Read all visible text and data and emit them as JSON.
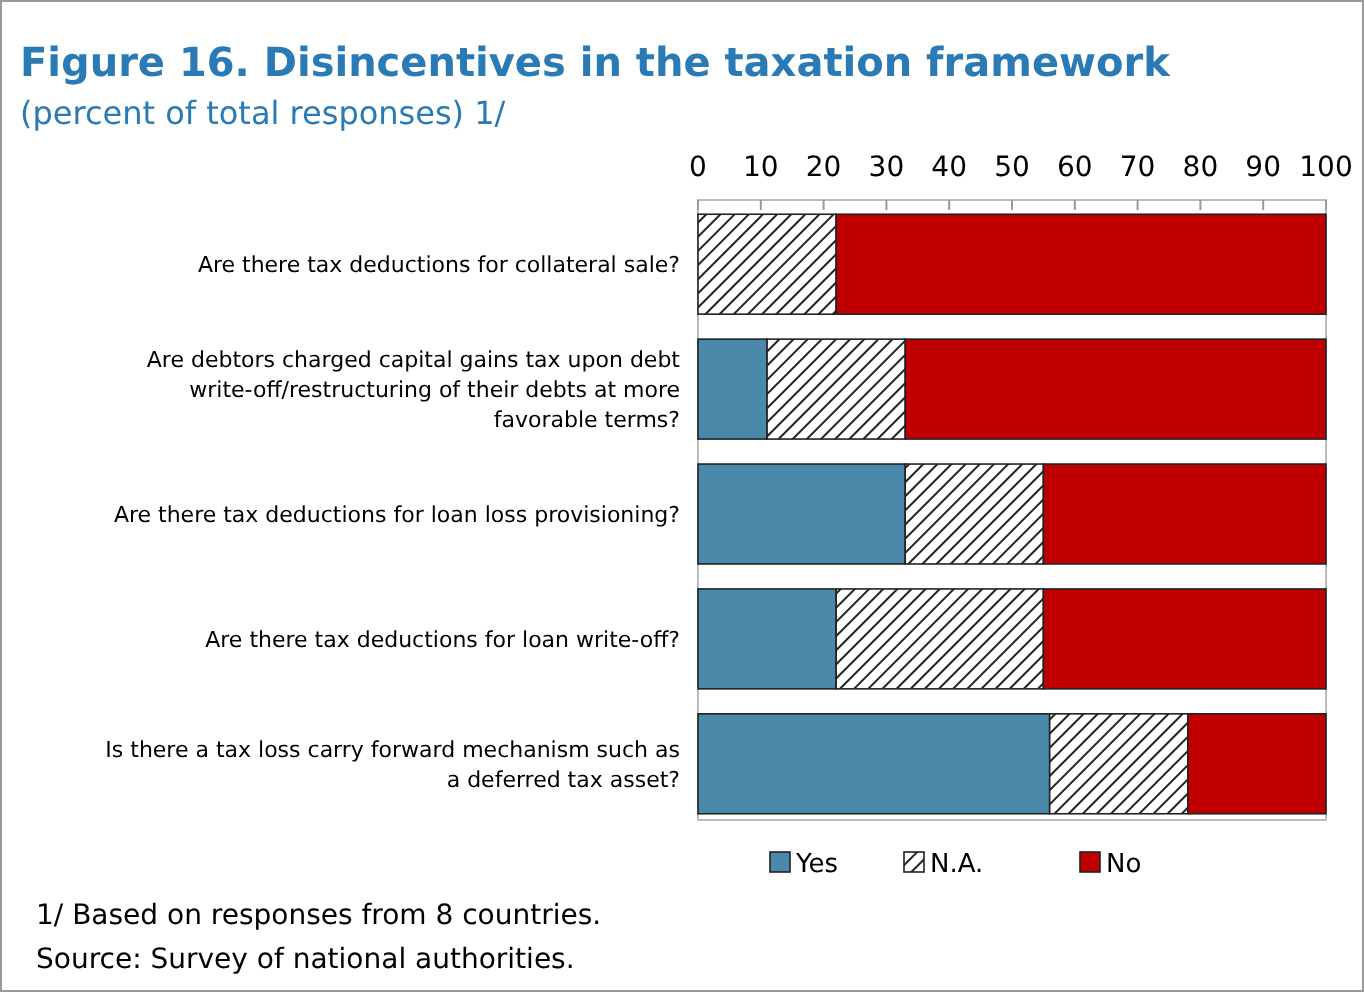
{
  "chart_data": {
    "type": "bar",
    "orientation": "horizontal",
    "stacked": true,
    "title": "Figure 16. Disincentives in the taxation framework",
    "subtitle": "(percent of total responses) 1/",
    "categories": [
      "Are there tax deductions for collateral sale?",
      "Are debtors charged capital gains tax upon debt\nwrite-off/restructuring of their debts at more\nfavorable terms?",
      "Are there tax deductions for loan loss provisioning?",
      "Are there tax deductions for loan write-off?",
      "Is there a tax loss carry forward mechanism such as\na deferred tax asset?"
    ],
    "series": [
      {
        "name": "Yes",
        "color": "#4a89aa",
        "values": [
          0,
          11,
          33,
          22,
          56
        ]
      },
      {
        "name": "N.A.",
        "color": "#222222",
        "values": [
          22,
          22,
          22,
          33,
          22
        ]
      },
      {
        "name": "No",
        "color": "#c00000",
        "values": [
          78,
          67,
          45,
          45,
          22
        ]
      }
    ],
    "xlim": [
      0,
      100
    ],
    "xticks": [
      0,
      10,
      20,
      30,
      40,
      50,
      60,
      70,
      80,
      90,
      100
    ],
    "legend": "bottom",
    "annotations": [
      "1/ Based on responses from 8 countries.",
      "Source: Survey of national authorities."
    ]
  }
}
